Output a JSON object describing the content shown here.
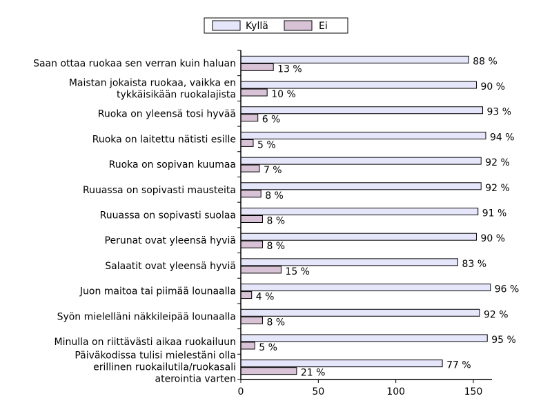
{
  "chart_data": {
    "type": "bar",
    "orientation": "horizontal",
    "categories": [
      [
        "Saan ottaa ruokaa sen verran kuin haluan"
      ],
      [
        "Maistan jokaista ruokaa, vaikka en",
        "tykkäisikään ruokalajista"
      ],
      [
        "Ruoka on yleensä tosi hyvää"
      ],
      [
        "Ruoka on laitettu nätisti esille"
      ],
      [
        "Ruoka on sopivan kuumaa"
      ],
      [
        "Ruuassa on sopivasti mausteita"
      ],
      [
        "Ruuassa on sopivasti suolaa"
      ],
      [
        "Perunat ovat yleensä hyviä"
      ],
      [
        "Salaatit ovat yleensä hyviä"
      ],
      [
        "Juon maitoa tai piimää lounaalla"
      ],
      [
        "Syön mielelläni näkkileipää lounaalla"
      ],
      [
        "Minulla on riittävästi aikaa ruokailuun"
      ],
      [
        "Päiväkodissa tulisi mielestäni olla",
        "erillinen ruokailutila/ruokasali",
        "aterointia varten"
      ]
    ],
    "series": [
      {
        "name": "Kyllä",
        "color": "#e6e6fa",
        "values": [
          147,
          152,
          156,
          158,
          155,
          155,
          153,
          152,
          140,
          161,
          154,
          159,
          130
        ],
        "labels": [
          "88 %",
          "90 %",
          "93 %",
          "94 %",
          "92 %",
          "92 %",
          "91 %",
          "90 %",
          "83 %",
          "96 %",
          "92 %",
          "95 %",
          "77 %"
        ]
      },
      {
        "name": "Ei",
        "color": "#d8c2d6",
        "values": [
          21,
          17,
          11,
          8,
          12,
          13,
          14,
          14,
          26,
          7,
          14,
          9,
          36
        ],
        "labels": [
          "13 %",
          "10 %",
          "6 %",
          "5 %",
          "7 %",
          "8 %",
          "8 %",
          "8 %",
          "15 %",
          "4 %",
          "8 %",
          "5 %",
          "21 %"
        ]
      }
    ],
    "x_ticks": [
      "0",
      "50",
      "100",
      "150"
    ],
    "xlim": [
      0,
      162
    ],
    "xlabel": "",
    "ylabel": "",
    "title": "",
    "grid": false,
    "legend_position": "top"
  }
}
